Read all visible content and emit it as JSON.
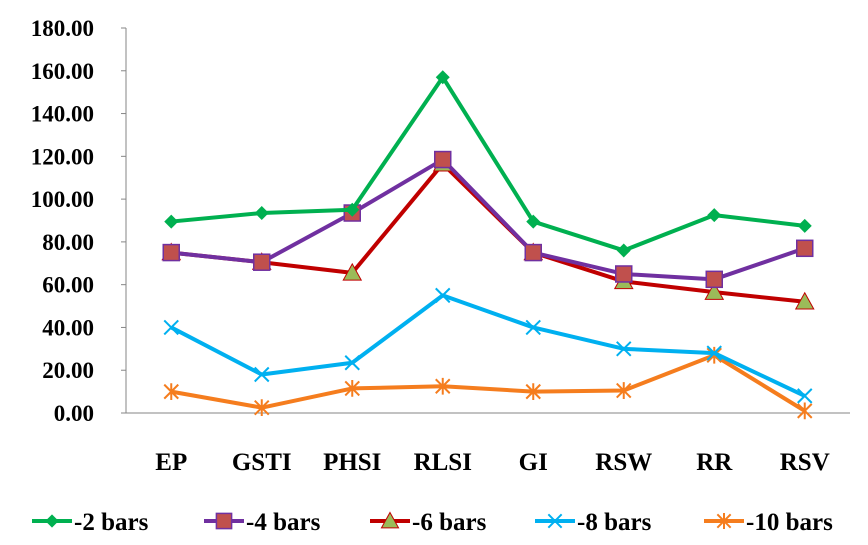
{
  "chart_data": {
    "type": "line",
    "title": "",
    "xlabel": "",
    "ylabel": "",
    "categories": [
      "EP",
      "GSTI",
      "PHSI",
      "RLSI",
      "GI",
      "RSW",
      "RR",
      "RSV"
    ],
    "ylim": [
      0,
      180
    ],
    "yticks": [
      "0.00",
      "20.00",
      "40.00",
      "60.00",
      "80.00",
      "100.00",
      "120.00",
      "140.00",
      "160.00",
      "180.00"
    ],
    "grid": false,
    "legend_position": "bottom",
    "series": [
      {
        "name": "-2 bars",
        "color": "#00B050",
        "marker": "diamond",
        "values": [
          89.5,
          93.5,
          95.0,
          157.0,
          89.5,
          76.0,
          92.5,
          87.5
        ]
      },
      {
        "name": "-4 bars",
        "color": "#7030A0",
        "marker": "square",
        "marker_fill": "#C0504D",
        "values": [
          75.0,
          70.5,
          93.5,
          118.5,
          75.0,
          65.0,
          62.5,
          77.0
        ]
      },
      {
        "name": "-6 bars",
        "color": "#C00000",
        "marker": "triangle",
        "marker_fill": "#9BBB59",
        "values": [
          75.0,
          70.5,
          65.5,
          116.5,
          75.0,
          61.5,
          56.5,
          52.0
        ]
      },
      {
        "name": "-8 bars",
        "color": "#00B0F0",
        "marker": "x",
        "values": [
          40.0,
          18.0,
          23.5,
          55.0,
          40.0,
          30.0,
          28.0,
          8.0
        ]
      },
      {
        "name": "-10 bars",
        "color": "#F57D1E",
        "marker": "star",
        "values": [
          10.0,
          2.5,
          11.5,
          12.5,
          10.0,
          10.5,
          27.0,
          1.0
        ]
      }
    ]
  }
}
